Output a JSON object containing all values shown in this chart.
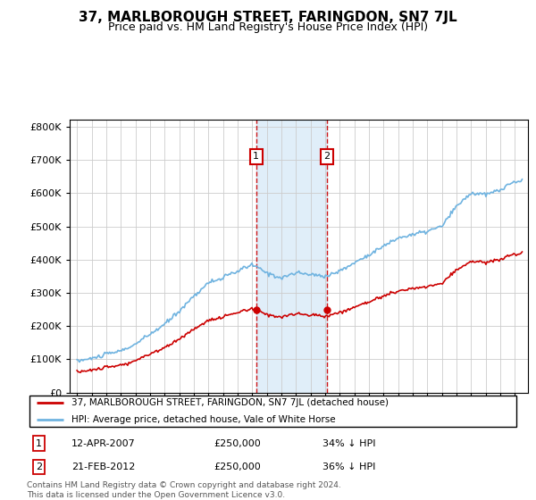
{
  "title": "37, MARLBOROUGH STREET, FARINGDON, SN7 7JL",
  "subtitle": "Price paid vs. HM Land Registry's House Price Index (HPI)",
  "legend_line1": "37, MARLBOROUGH STREET, FARINGDON, SN7 7JL (detached house)",
  "legend_line2": "HPI: Average price, detached house, Vale of White Horse",
  "annotation1_date": "12-APR-2007",
  "annotation1_price": "£250,000",
  "annotation1_hpi": "34% ↓ HPI",
  "annotation1_year": 2007.28,
  "annotation2_date": "21-FEB-2012",
  "annotation2_price": "£250,000",
  "annotation2_hpi": "36% ↓ HPI",
  "annotation2_year": 2012.13,
  "footer": "Contains HM Land Registry data © Crown copyright and database right 2024.\nThis data is licensed under the Open Government Licence v3.0.",
  "ylim": [
    0,
    820000
  ],
  "yticks": [
    0,
    100000,
    200000,
    300000,
    400000,
    500000,
    600000,
    700000,
    800000
  ],
  "hpi_color": "#6fb3e0",
  "price_color": "#cc0000",
  "sale1_price": 250000,
  "sale2_price": 250000,
  "background_color": "#ffffff",
  "plot_bg_color": "#ffffff",
  "grid_color": "#cccccc"
}
